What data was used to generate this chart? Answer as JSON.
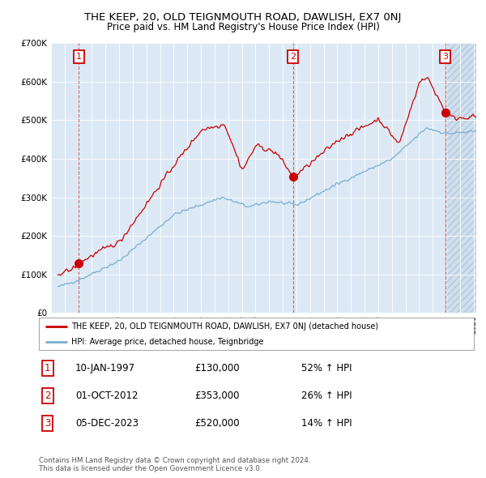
{
  "title": "THE KEEP, 20, OLD TEIGNMOUTH ROAD, DAWLISH, EX7 0NJ",
  "subtitle": "Price paid vs. HM Land Registry's House Price Index (HPI)",
  "ylim": [
    0,
    700000
  ],
  "yticks": [
    0,
    100000,
    200000,
    300000,
    400000,
    500000,
    600000,
    700000
  ],
  "ytick_labels": [
    "£0",
    "£100K",
    "£200K",
    "£300K",
    "£400K",
    "£500K",
    "£600K",
    "£700K"
  ],
  "xlim_start": 1995.5,
  "xlim_end": 2026.2,
  "purchases": [
    {
      "date": 1997.04,
      "price": 130000,
      "label": "1"
    },
    {
      "date": 2012.75,
      "price": 353000,
      "label": "2"
    },
    {
      "date": 2023.92,
      "price": 520000,
      "label": "3"
    }
  ],
  "vlines": [
    1997.04,
    2012.75,
    2023.92
  ],
  "red_line_color": "#cc0000",
  "blue_line_color": "#7aadcf",
  "background_color": "#dce9f5",
  "legend_label_red": "THE KEEP, 20, OLD TEIGNMOUTH ROAD, DAWLISH, EX7 0NJ (detached house)",
  "legend_label_blue": "HPI: Average price, detached house, Teignbridge",
  "table_rows": [
    {
      "num": "1",
      "date": "10-JAN-1997",
      "price": "£130,000",
      "change": "52% ↑ HPI"
    },
    {
      "num": "2",
      "date": "01-OCT-2012",
      "price": "£353,000",
      "change": "26% ↑ HPI"
    },
    {
      "num": "3",
      "date": "05-DEC-2023",
      "price": "£520,000",
      "change": "14% ↑ HPI"
    }
  ],
  "footer": "Contains HM Land Registry data © Crown copyright and database right 2024.\nThis data is licensed under the Open Government Licence v3.0."
}
